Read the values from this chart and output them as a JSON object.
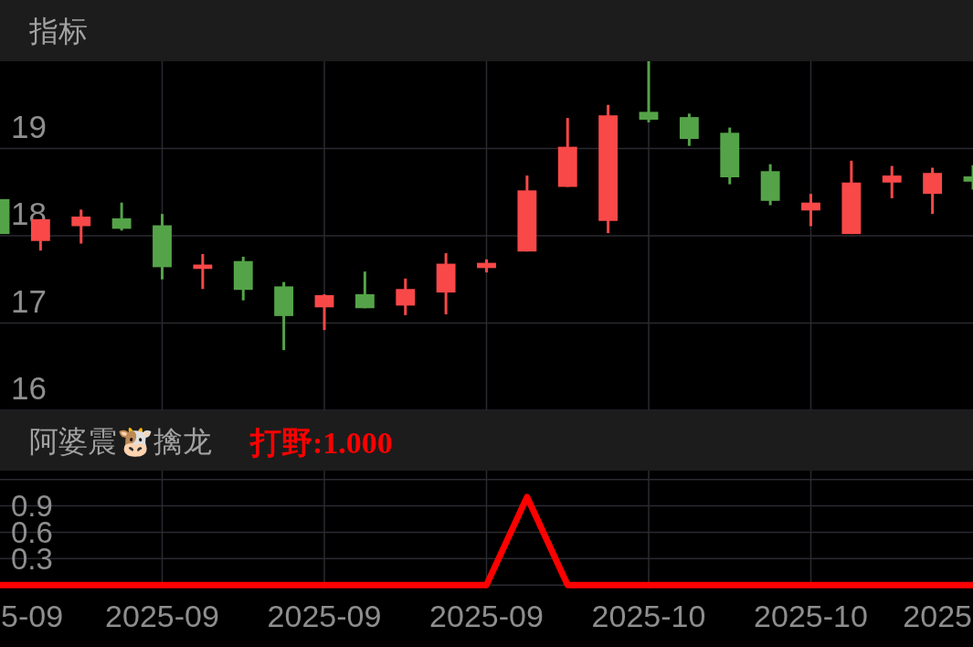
{
  "chart_data": [
    {
      "type": "candlestick",
      "title": "指标",
      "categories": [
        null,
        null,
        null,
        null,
        null,
        null,
        null,
        null,
        null,
        null,
        null,
        null,
        null,
        null,
        null,
        null,
        null,
        null,
        null,
        null,
        null,
        null,
        null,
        null,
        null
      ],
      "ohlc": [
        [
          18.42,
          18.42,
          18.02,
          18.02
        ],
        [
          17.94,
          18.19,
          17.83,
          18.19
        ],
        [
          18.11,
          18.3,
          17.91,
          18.22
        ],
        [
          18.2,
          18.38,
          18.06,
          18.08
        ],
        [
          18.12,
          18.25,
          17.5,
          17.64
        ],
        [
          17.62,
          17.79,
          17.39,
          17.67
        ],
        [
          17.71,
          17.76,
          17.26,
          17.38
        ],
        [
          17.42,
          17.47,
          16.69,
          17.08
        ],
        [
          17.18,
          17.33,
          16.92,
          17.32
        ],
        [
          17.33,
          17.59,
          17.17,
          17.17
        ],
        [
          17.2,
          17.51,
          17.09,
          17.39
        ],
        [
          17.35,
          17.8,
          17.1,
          17.68
        ],
        [
          17.63,
          17.73,
          17.58,
          17.69
        ],
        [
          17.82,
          18.69,
          17.82,
          18.52
        ],
        [
          18.56,
          19.35,
          18.56,
          19.02
        ],
        [
          18.17,
          19.5,
          18.03,
          19.38
        ],
        [
          19.42,
          20.0,
          19.3,
          19.33
        ],
        [
          19.36,
          19.4,
          19.03,
          19.11
        ],
        [
          19.18,
          19.24,
          18.59,
          18.67
        ],
        [
          18.74,
          18.82,
          18.35,
          18.4
        ],
        [
          18.29,
          18.48,
          18.11,
          18.38
        ],
        [
          18.02,
          18.86,
          18.02,
          18.61
        ],
        [
          18.61,
          18.8,
          18.43,
          18.69
        ],
        [
          18.48,
          18.78,
          18.25,
          18.72
        ],
        [
          18.68,
          18.81,
          18.53,
          18.62
        ]
      ],
      "colors": [
        "#55a349",
        "#f94848",
        "#f94848",
        "#55a349",
        "#55a349",
        "#f94848",
        "#55a349",
        "#55a349",
        "#f94848",
        "#55a349",
        "#f94848",
        "#f94848",
        "#f94848",
        "#f94848",
        "#f94848",
        "#f94848",
        "#55a349",
        "#55a349",
        "#55a349",
        "#55a349",
        "#f94848",
        "#f94848",
        "#f94848",
        "#f94848",
        "#55a349"
      ],
      "ylim": [
        16,
        20
      ],
      "yticks": [
        16,
        17,
        18,
        19
      ],
      "grid": true
    },
    {
      "type": "line",
      "title": "阿婆震🐮擒龙",
      "categories": [
        null,
        null,
        null,
        null,
        "2025-09",
        null,
        null,
        null,
        "2025-09",
        null,
        null,
        null,
        "2025-09",
        null,
        null,
        null,
        "2025-10",
        null,
        null,
        null,
        "2025-10",
        null,
        null,
        null,
        null
      ],
      "series": [
        {
          "name": "打野:1.000",
          "color": "#ff0000",
          "values": [
            0,
            0,
            0,
            0,
            0,
            0,
            0,
            0,
            0,
            0,
            0,
            0,
            0,
            1,
            0,
            0,
            0,
            0,
            0,
            0,
            0,
            0,
            0,
            0,
            0
          ]
        }
      ],
      "ylim": [
        -0.04,
        1.3
      ],
      "yticks": [
        {
          "value": 0,
          "label": null
        },
        0.3,
        0.6,
        0.9,
        {
          "value": 1.2,
          "label": null
        }
      ],
      "grid": true,
      "legend": "top left",
      "annotations": [
        "5-09",
        "2025"
      ]
    }
  ]
}
